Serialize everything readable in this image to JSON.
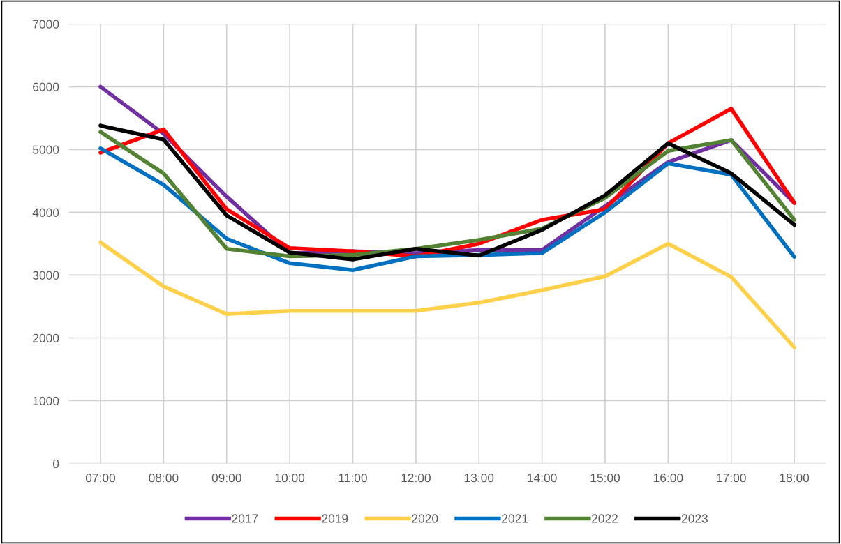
{
  "chart_data": {
    "type": "line",
    "categories": [
      "07:00",
      "08:00",
      "09:00",
      "10:00",
      "11:00",
      "12:00",
      "13:00",
      "14:00",
      "15:00",
      "16:00",
      "17:00",
      "18:00"
    ],
    "series": [
      {
        "name": "2017",
        "color": "#7030a0",
        "values": [
          6000,
          5250,
          4250,
          3350,
          3380,
          3350,
          3400,
          3400,
          4100,
          4800,
          5150,
          4150
        ]
      },
      {
        "name": "2019",
        "color": "#ff0000",
        "values": [
          4950,
          5320,
          4050,
          3430,
          3380,
          3300,
          3500,
          3880,
          4050,
          5100,
          5650,
          4150
        ]
      },
      {
        "name": "2020",
        "color": "#ffd04a",
        "values": [
          3520,
          2820,
          2380,
          2430,
          2430,
          2430,
          2560,
          2760,
          2980,
          3500,
          2970,
          1850
        ]
      },
      {
        "name": "2021",
        "color": "#0070c0",
        "values": [
          5020,
          4440,
          3580,
          3190,
          3080,
          3300,
          3320,
          3350,
          4000,
          4780,
          4600,
          3290
        ]
      },
      {
        "name": "2022",
        "color": "#548235",
        "values": [
          5280,
          4620,
          3420,
          3300,
          3320,
          3420,
          3560,
          3740,
          4230,
          4980,
          5150,
          3880
        ]
      },
      {
        "name": "2023",
        "color": "#000000",
        "values": [
          5380,
          5160,
          3950,
          3360,
          3250,
          3420,
          3310,
          3720,
          4270,
          5100,
          4620,
          3800
        ]
      }
    ],
    "ylim": [
      0,
      7000
    ],
    "yticks": [
      0,
      1000,
      2000,
      3000,
      4000,
      5000,
      6000,
      7000
    ],
    "grid": true,
    "legend": "bottom",
    "marker": "none",
    "line_style": "solid"
  }
}
